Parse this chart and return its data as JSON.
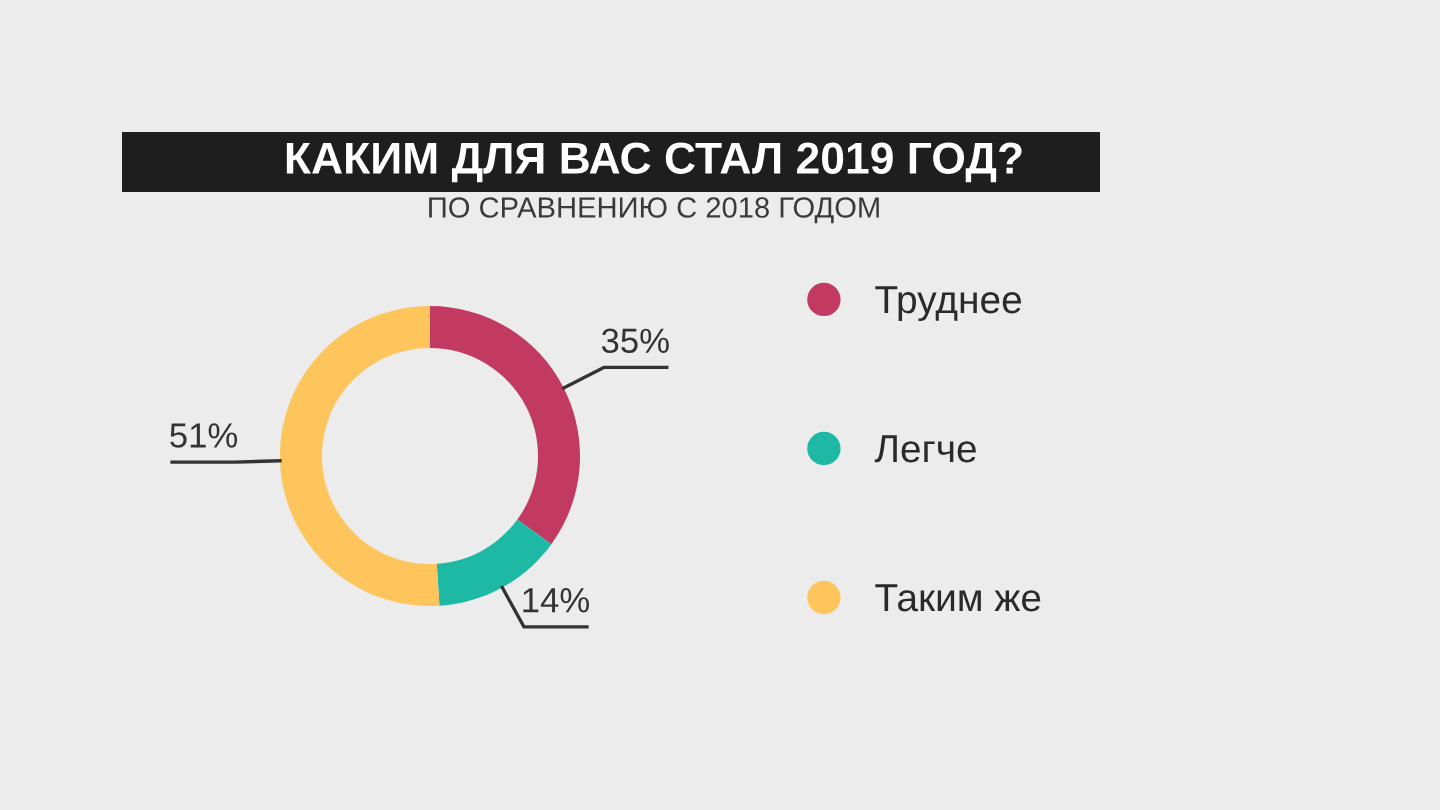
{
  "chart_data": {
    "type": "donut",
    "title": "КАКИМ ДЛЯ ВАС СТАЛ 2019 ГОД?",
    "subtitle": "ПО СРАВНЕНИЮ С 2018 ГОДОМ",
    "categories": [
      "Труднее",
      "Легче",
      "Таким же"
    ],
    "values": [
      35,
      14,
      51
    ],
    "colors": [
      "#c23a62",
      "#1db9a5",
      "#fdc55c"
    ],
    "value_labels": [
      "35%",
      "14%",
      "51%"
    ],
    "legend": "right"
  }
}
